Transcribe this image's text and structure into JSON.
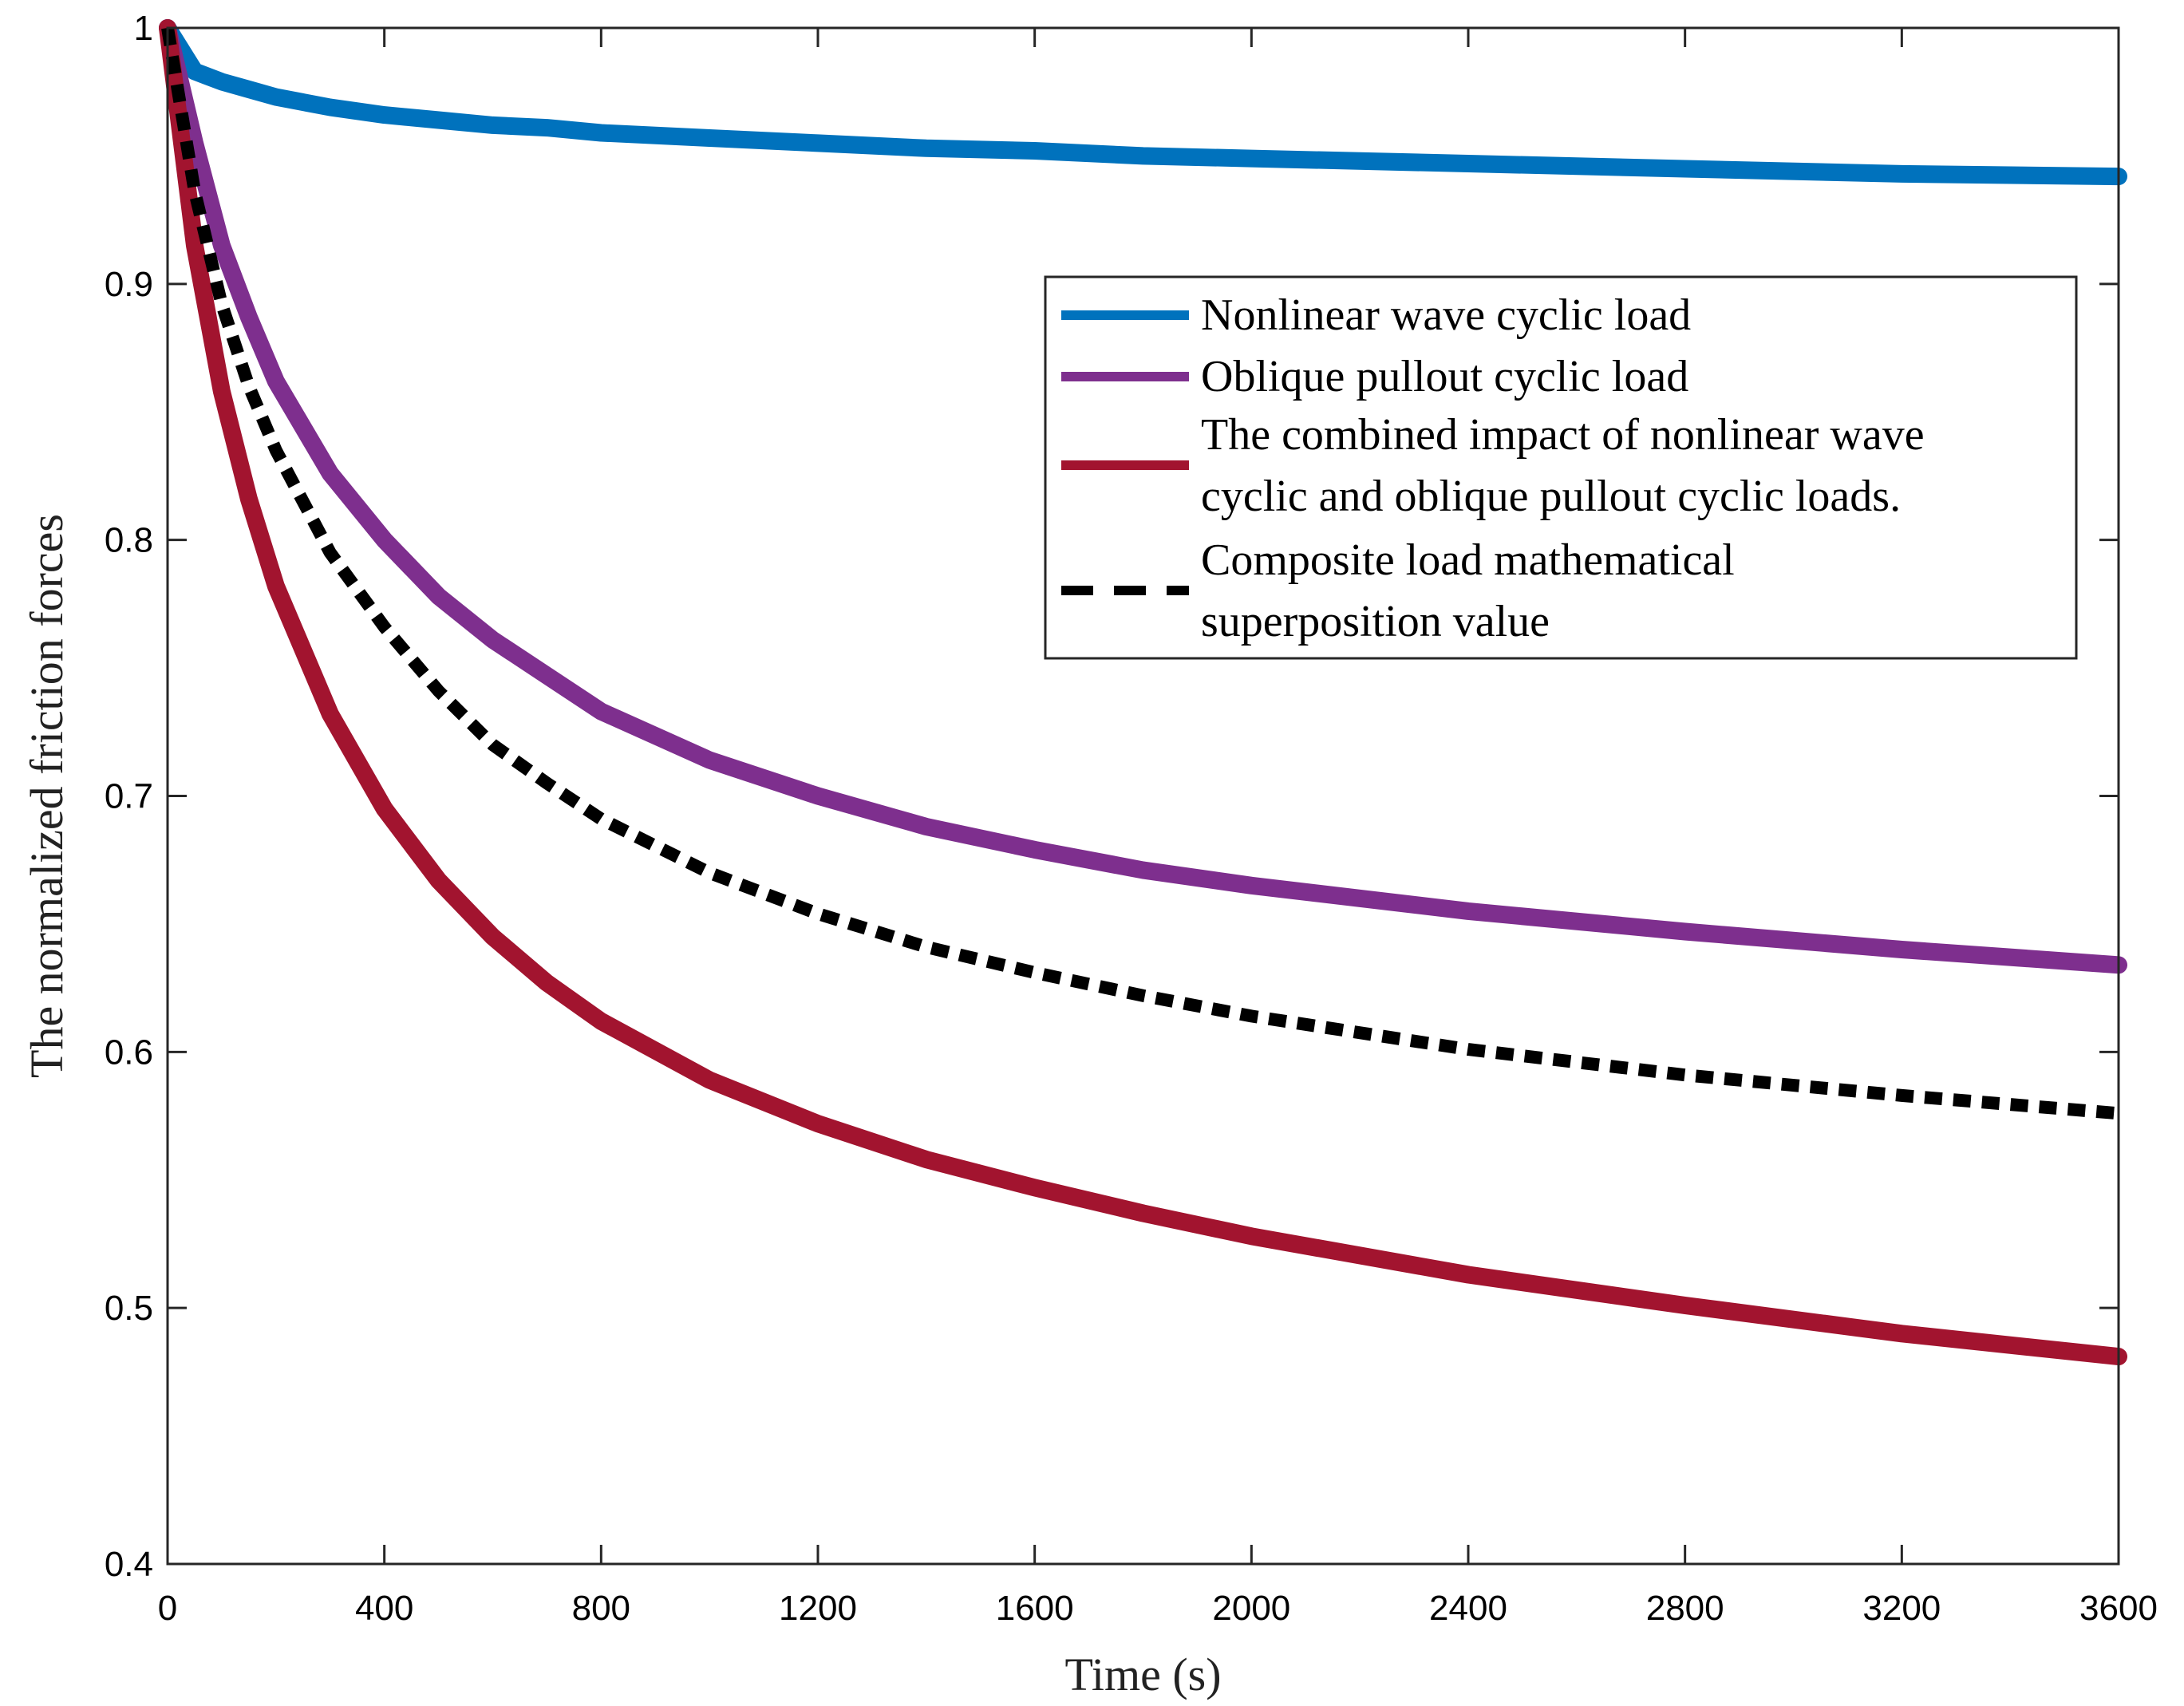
{
  "chart_data": {
    "type": "line",
    "title": "",
    "xlabel": "Time (s)",
    "ylabel": "The normalized friction forces",
    "xlim": [
      0,
      3600
    ],
    "ylim": [
      0.4,
      1.0
    ],
    "xticks": [
      "0",
      "400",
      "800",
      "1200",
      "1600",
      "2000",
      "2400",
      "2800",
      "3200",
      "3600"
    ],
    "yticks": [
      "0.4",
      "0.5",
      "0.6",
      "0.7",
      "0.8",
      "0.9",
      "1"
    ],
    "grid": false,
    "legend_position": "top-right",
    "x": [
      0,
      50,
      100,
      150,
      200,
      300,
      400,
      500,
      600,
      700,
      800,
      1000,
      1200,
      1400,
      1600,
      1800,
      2000,
      2400,
      2800,
      3200,
      3600
    ],
    "series": [
      {
        "name": "Nonlinear wave cyclic load",
        "color": "#0072BD",
        "style": "solid",
        "values": [
          1.0,
          0.983,
          0.979,
          0.976,
          0.973,
          0.969,
          0.966,
          0.964,
          0.962,
          0.961,
          0.959,
          0.957,
          0.955,
          0.953,
          0.952,
          0.95,
          0.949,
          0.947,
          0.945,
          0.943,
          0.942
        ]
      },
      {
        "name": "Oblique pullout cyclic load",
        "color": "#7E2F8E",
        "style": "solid",
        "values": [
          1.0,
          0.955,
          0.915,
          0.887,
          0.862,
          0.826,
          0.8,
          0.778,
          0.761,
          0.747,
          0.733,
          0.714,
          0.7,
          0.688,
          0.679,
          0.671,
          0.665,
          0.655,
          0.647,
          0.64,
          0.634
        ]
      },
      {
        "name": "The combined impact of nonlinear wave cyclic and oblique pullout cyclic loads.",
        "color": "#A2142F",
        "style": "solid",
        "values": [
          1.0,
          0.915,
          0.858,
          0.816,
          0.782,
          0.732,
          0.695,
          0.667,
          0.645,
          0.627,
          0.612,
          0.589,
          0.572,
          0.558,
          0.547,
          0.537,
          0.528,
          0.513,
          0.501,
          0.49,
          0.481
        ]
      },
      {
        "name": "Composite load mathematical superposition value",
        "color": "#000000",
        "style": "dashed",
        "values": [
          1.0,
          0.936,
          0.892,
          0.86,
          0.835,
          0.795,
          0.766,
          0.741,
          0.72,
          0.705,
          0.691,
          0.67,
          0.654,
          0.641,
          0.631,
          0.622,
          0.614,
          0.601,
          0.591,
          0.583,
          0.576
        ]
      }
    ]
  }
}
